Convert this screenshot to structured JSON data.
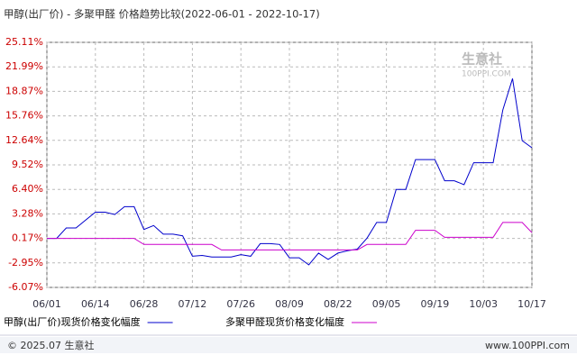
{
  "chart_data": {
    "type": "line",
    "title": "甲醇(出厂价) - 多聚甲醛 价格趋势比较(2022-06-01 - 2022-10-17)",
    "categories": [
      "06/01",
      null,
      null,
      null,
      null,
      "06/14",
      null,
      null,
      null,
      null,
      "06/28",
      null,
      null,
      null,
      null,
      "07/12",
      null,
      null,
      null,
      null,
      "07/26",
      null,
      null,
      null,
      null,
      "08/09",
      null,
      null,
      null,
      null,
      "08/22",
      null,
      null,
      null,
      null,
      "09/05",
      null,
      null,
      null,
      null,
      "09/19",
      null,
      null,
      null,
      null,
      "10/03",
      null,
      null,
      null,
      null,
      "10/17"
    ],
    "series": [
      {
        "name": "甲醇(出厂价)现货价格变化幅度",
        "color": "#0000cc",
        "values": [
          0.17,
          0.17,
          1.5,
          1.5,
          2.5,
          3.5,
          3.5,
          3.2,
          4.2,
          4.2,
          1.3,
          1.8,
          0.7,
          0.7,
          0.5,
          -2.1,
          -2.0,
          -2.2,
          -2.2,
          -2.2,
          -1.9,
          -2.1,
          -0.5,
          -0.5,
          -0.6,
          -2.3,
          -2.3,
          -3.2,
          -1.7,
          -2.5,
          -1.7,
          -1.4,
          -1.2,
          0.2,
          2.2,
          2.2,
          6.4,
          6.4,
          10.2,
          10.2,
          10.2,
          7.5,
          7.5,
          7.0,
          9.8,
          9.8,
          9.8,
          16.5,
          20.5,
          12.6,
          11.7
        ]
      },
      {
        "name": "多聚甲醛现货价格变化幅度",
        "color": "#cc00cc",
        "values": [
          0.17,
          0.17,
          0.17,
          0.17,
          0.17,
          0.17,
          0.17,
          0.17,
          0.17,
          0.17,
          -0.6,
          -0.6,
          -0.6,
          -0.6,
          -0.6,
          -0.6,
          -0.6,
          -0.6,
          -1.3,
          -1.3,
          -1.3,
          -1.3,
          -1.3,
          -1.3,
          -1.3,
          -1.3,
          -1.3,
          -1.3,
          -1.3,
          -1.3,
          -1.3,
          -1.3,
          -1.3,
          -0.6,
          -0.6,
          -0.6,
          -0.6,
          -0.6,
          1.2,
          1.2,
          1.2,
          0.3,
          0.3,
          0.3,
          0.3,
          0.3,
          0.3,
          2.2,
          2.2,
          2.2,
          0.9
        ]
      }
    ],
    "ylim": [
      -6.07,
      25.11
    ],
    "yticks": [
      {
        "value": 25.11,
        "label": "25.11%"
      },
      {
        "value": 21.99,
        "label": "21.99%"
      },
      {
        "value": 18.87,
        "label": "18.87%"
      },
      {
        "value": 15.76,
        "label": "15.76%"
      },
      {
        "value": 12.64,
        "label": "12.64%"
      },
      {
        "value": 9.52,
        "label": "9.52%"
      },
      {
        "value": 6.4,
        "label": "6.40%"
      },
      {
        "value": 3.28,
        "label": "3.28%"
      },
      {
        "value": 0.17,
        "label": "0.17%"
      },
      {
        "value": -2.95,
        "label": "-2.95%"
      },
      {
        "value": -6.07,
        "label": "-6.07%"
      }
    ],
    "grid": true,
    "watermark": [
      "生意社",
      "100PPI.COM"
    ],
    "footer": {
      "left": "© 2025.07 生意社",
      "right": "www.100PPI.com"
    }
  }
}
